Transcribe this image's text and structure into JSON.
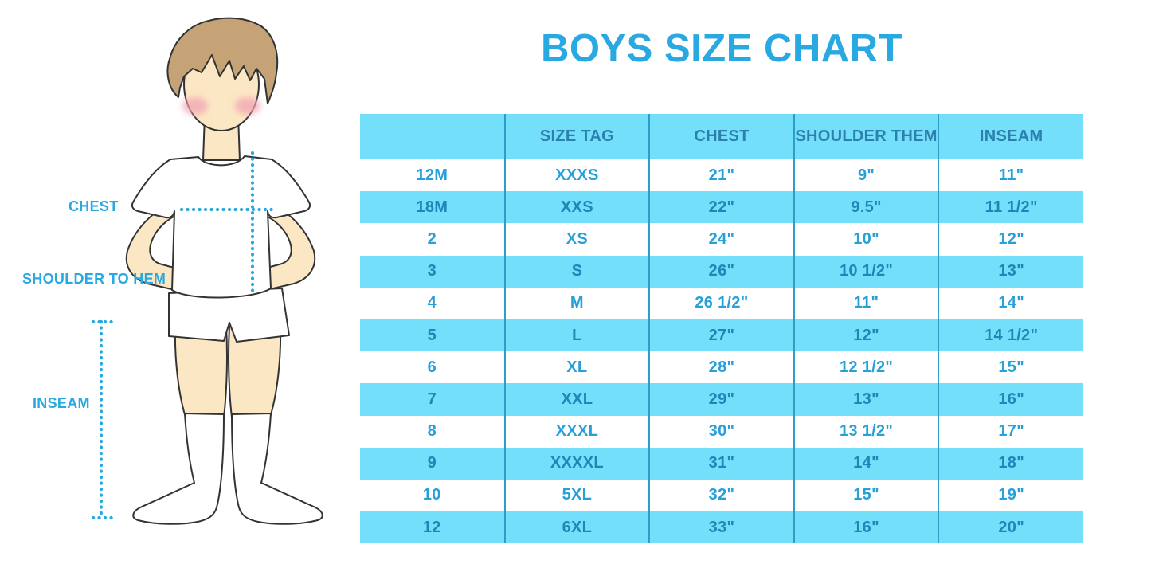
{
  "title": "BOYS SIZE CHART",
  "figure": {
    "labels": {
      "chest": "CHEST",
      "shoulder_to_hem": "SHOULDER TO HEM",
      "inseam": "INSEAM"
    }
  },
  "table": {
    "headers": [
      "",
      "SIZE TAG",
      "CHEST",
      "SHOULDER THEM",
      "INSEAM"
    ],
    "rows": [
      [
        "12M",
        "XXXS",
        "21\"",
        "9\"",
        "11\""
      ],
      [
        "18M",
        "XXS",
        "22\"",
        "9.5\"",
        "11 1/2\""
      ],
      [
        "2",
        "XS",
        "24\"",
        "10\"",
        "12\""
      ],
      [
        "3",
        "S",
        "26\"",
        "10 1/2\"",
        "13\""
      ],
      [
        "4",
        "M",
        "26 1/2\"",
        "11\"",
        "14\""
      ],
      [
        "5",
        "L",
        "27\"",
        "12\"",
        "14 1/2\""
      ],
      [
        "6",
        "XL",
        "28\"",
        "12 1/2\"",
        "15\""
      ],
      [
        "7",
        "XXL",
        "29\"",
        "13\"",
        "16\""
      ],
      [
        "8",
        "XXXL",
        "30\"",
        "13 1/2\"",
        "17\""
      ],
      [
        "9",
        "XXXXL",
        "31\"",
        "14\"",
        "18\""
      ],
      [
        "10",
        "5XL",
        "32\"",
        "15\"",
        "19\""
      ],
      [
        "12",
        "6XL",
        "33\"",
        "16\"",
        "20\""
      ]
    ]
  },
  "chart_data": {
    "type": "table",
    "title": "BOYS SIZE CHART",
    "columns": [
      "",
      "SIZE TAG",
      "CHEST",
      "SHOULDER THEM",
      "INSEAM"
    ],
    "rows": [
      [
        "12M",
        "XXXS",
        "21\"",
        "9\"",
        "11\""
      ],
      [
        "18M",
        "XXS",
        "22\"",
        "9.5\"",
        "11 1/2\""
      ],
      [
        "2",
        "XS",
        "24\"",
        "10\"",
        "12\""
      ],
      [
        "3",
        "S",
        "26\"",
        "10 1/2\"",
        "13\""
      ],
      [
        "4",
        "M",
        "26 1/2\"",
        "11\"",
        "14\""
      ],
      [
        "5",
        "L",
        "27\"",
        "12\"",
        "14 1/2\""
      ],
      [
        "6",
        "XL",
        "28\"",
        "12 1/2\"",
        "15\""
      ],
      [
        "7",
        "XXL",
        "29\"",
        "13\"",
        "16\""
      ],
      [
        "8",
        "XXXL",
        "30\"",
        "13 1/2\"",
        "17\""
      ],
      [
        "9",
        "XXXXL",
        "31\"",
        "14\"",
        "18\""
      ],
      [
        "10",
        "5XL",
        "32\"",
        "15\"",
        "19\""
      ],
      [
        "12",
        "6XL",
        "33\"",
        "16\"",
        "20\""
      ]
    ],
    "annotations": [
      "CHEST",
      "SHOULDER TO HEM",
      "INSEAM"
    ]
  },
  "colors": {
    "accent": "#29A9E1",
    "table-fill": "#73DFFA",
    "divider": "#2E9DC8",
    "header-text": "#2B80AE",
    "row-text": "#27A0DA",
    "row-text-alt": "#1F86B8",
    "hair": "#C5A376",
    "skin": "#FBE7C4",
    "blush": "#F2A3B3",
    "outline": "#333333"
  }
}
